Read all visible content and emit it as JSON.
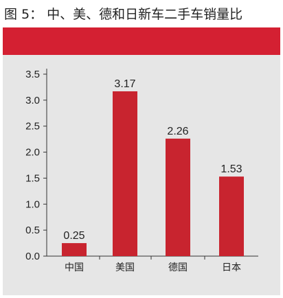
{
  "figure": {
    "title": "图 5： 中、美、德和日新车二手车销量比"
  },
  "colors": {
    "bar": "#c8242f",
    "band": "#d42032",
    "panel": "#e6e6e6",
    "axis": "#333333"
  },
  "chart_data": {
    "type": "bar",
    "title": "",
    "xlabel": "",
    "ylabel": "",
    "categories": [
      "中国",
      "美国",
      "德国",
      "日本"
    ],
    "values": [
      0.25,
      3.17,
      2.26,
      1.53
    ],
    "value_labels": [
      "0.25",
      "3.17",
      "2.26",
      "1.53"
    ],
    "y_ticks": [
      "0.0",
      "0.5",
      "1.0",
      "1.5",
      "2.0",
      "2.5",
      "3.0",
      "3.5"
    ],
    "ylim": [
      0,
      3.5
    ],
    "grid": false,
    "legend": "none"
  }
}
